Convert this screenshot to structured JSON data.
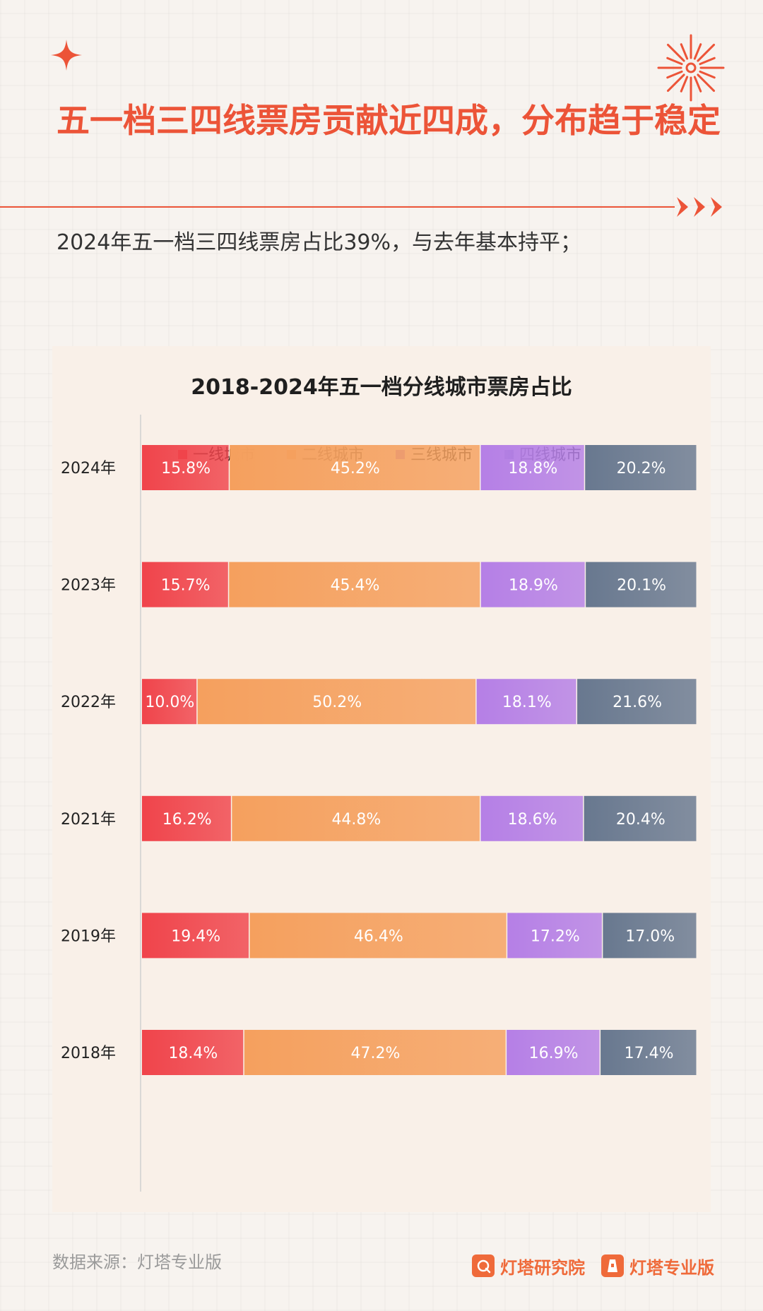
{
  "header": {
    "title": "五一档三四线票房贡献近四成，分布趋于稳定",
    "subtitle": "2024年五一档三四线票房占比39%，与去年基本持平；"
  },
  "colors": {
    "accent": "#ec5438",
    "tier1": "#f0444b",
    "tier2": "#f5a05e",
    "tier3": "#b57fe6",
    "tier4": "#68788f"
  },
  "chart_data": {
    "type": "bar",
    "orientation": "horizontal",
    "stacked": true,
    "percent_stacked": true,
    "title": "2018-2024年五一档分线城市票房占比",
    "legend_position": "top",
    "categories": [
      "2024年",
      "2023年",
      "2022年",
      "2021年",
      "2019年",
      "2018年"
    ],
    "series": [
      {
        "name": "一线城市",
        "values": [
          15.8,
          15.7,
          10.0,
          16.2,
          19.4,
          18.4
        ],
        "color": "#f0444b"
      },
      {
        "name": "二线城市",
        "values": [
          45.2,
          45.4,
          50.2,
          44.8,
          46.4,
          47.2
        ],
        "color": "#f5a05e"
      },
      {
        "name": "三线城市",
        "values": [
          18.8,
          18.9,
          18.1,
          18.6,
          17.2,
          16.9
        ],
        "color": "#b57fe6"
      },
      {
        "name": "四线城市",
        "values": [
          20.2,
          20.1,
          21.6,
          20.4,
          17.0,
          17.4
        ],
        "color": "#68788f"
      }
    ],
    "value_format": "{v}%",
    "grid": false
  },
  "footer": {
    "source": "数据来源：灯塔专业版",
    "logo_research": "灯塔研究院",
    "logo_pro": "灯塔专业版"
  },
  "icons": [
    "sparkle-icon",
    "firework-icon",
    "arrows-icon",
    "lighthouse-research-logo-icon",
    "lighthouse-pro-logo-icon"
  ]
}
